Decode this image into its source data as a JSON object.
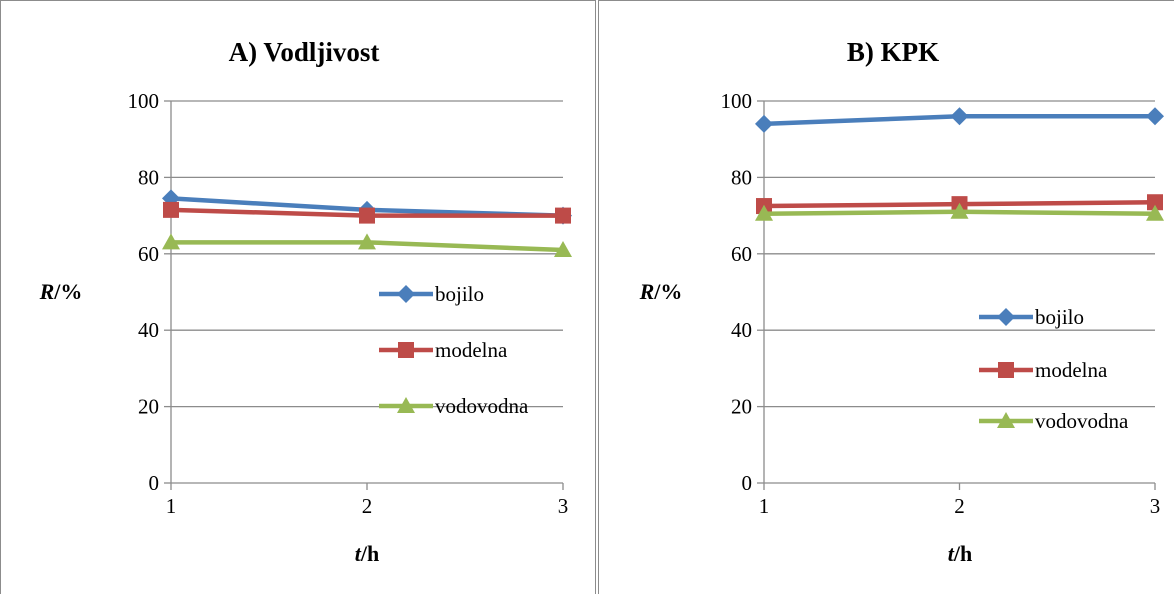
{
  "chart_data": [
    {
      "type": "line",
      "title": "A) Vodljivost",
      "xlabel_var": "t",
      "xlabel_unit": "/h",
      "ylabel_var": "R",
      "ylabel_unit": "/%",
      "x": [
        1,
        2,
        3
      ],
      "ylim": [
        0,
        100
      ],
      "yticks": [
        0,
        20,
        40,
        60,
        80,
        100
      ],
      "grid": true,
      "legend_position": "right",
      "series": [
        {
          "name": "bojilo",
          "values": [
            74.5,
            71.5,
            70.0
          ],
          "color": "#4a7ebb",
          "marker": "diamond"
        },
        {
          "name": "modelna",
          "values": [
            71.5,
            70.0,
            70.0
          ],
          "color": "#be4b48",
          "marker": "square"
        },
        {
          "name": "vodovodna",
          "values": [
            63.0,
            63.0,
            61.0
          ],
          "color": "#98b954",
          "marker": "triangle"
        }
      ]
    },
    {
      "type": "line",
      "title": "B) KPK",
      "xlabel_var": "t",
      "xlabel_unit": "/h",
      "ylabel_var": "R",
      "ylabel_unit": "/%",
      "x": [
        1,
        2,
        3
      ],
      "ylim": [
        0,
        100
      ],
      "yticks": [
        0,
        20,
        40,
        60,
        80,
        100
      ],
      "grid": true,
      "legend_position": "right",
      "series": [
        {
          "name": "bojilo",
          "values": [
            94.0,
            96.0,
            96.0
          ],
          "color": "#4a7ebb",
          "marker": "diamond"
        },
        {
          "name": "modelna",
          "values": [
            72.5,
            73.0,
            73.5
          ],
          "color": "#be4b48",
          "marker": "square"
        },
        {
          "name": "vodovodna",
          "values": [
            70.5,
            71.0,
            70.5
          ],
          "color": "#98b954",
          "marker": "triangle"
        }
      ]
    }
  ]
}
